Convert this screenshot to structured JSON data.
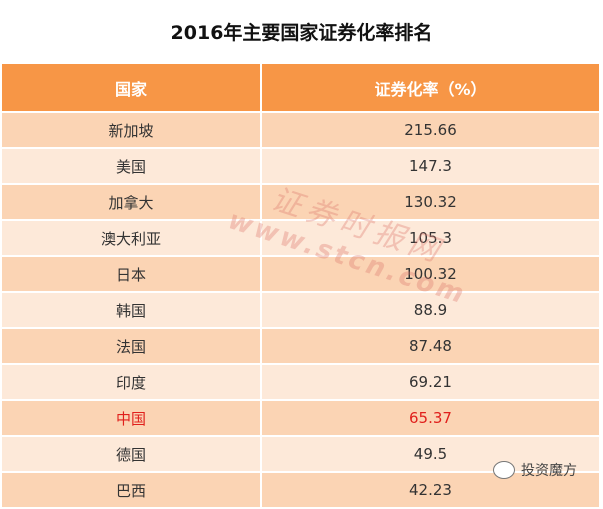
{
  "chart_data": {
    "type": "table",
    "title": "2016年主要国家证券化率排名",
    "columns": [
      "国家",
      "证券化率（%）"
    ],
    "rows": [
      [
        "新加坡",
        "215.66"
      ],
      [
        "美国",
        "147.3"
      ],
      [
        "加拿大",
        "130.32"
      ],
      [
        "澳大利亚",
        "105.3"
      ],
      [
        "日本",
        "100.32"
      ],
      [
        "韩国",
        "88.9"
      ],
      [
        "法国",
        "87.48"
      ],
      [
        "印度",
        "69.21"
      ],
      [
        "中国",
        "65.37"
      ],
      [
        "德国",
        "49.5"
      ],
      [
        "巴西",
        "42.23"
      ]
    ],
    "highlight_row": "中国",
    "colors": {
      "header": "#f79646",
      "row_odd": "#fbd4b4",
      "row_even": "#fde9d9",
      "highlight_text": "#e0201c"
    }
  },
  "watermark": {
    "line1": "证券时报网",
    "line2": "www.stcn.com"
  },
  "logo": {
    "text": "投资魔方",
    "icon": "wechat-icon"
  }
}
